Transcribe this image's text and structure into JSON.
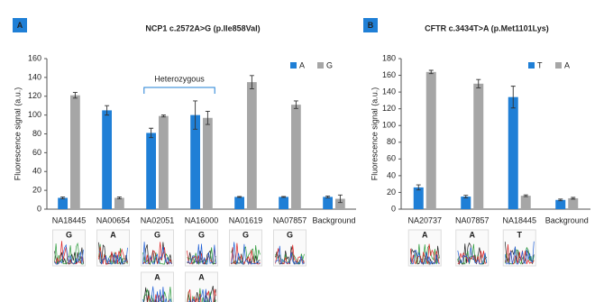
{
  "chart_data": [
    {
      "type": "bar",
      "panel": "A",
      "title": "NCP1 c.2572A>G (p.Ile858Val)",
      "y_label": "Fluorescence signal (a.u.)",
      "categories": [
        "NA18445",
        "NA00654",
        "NA02051",
        "NA16000",
        "NA01619",
        "NA07857",
        "Background"
      ],
      "series": [
        {
          "name": "A",
          "color": "#1f7fd6",
          "values": [
            12,
            105,
            81,
            100,
            13,
            13,
            13
          ],
          "errors": [
            1,
            5,
            5,
            15,
            0.5,
            0.5,
            1
          ]
        },
        {
          "name": "G",
          "color": "#a6a6a6",
          "values": [
            121,
            12,
            99,
            97,
            135,
            111,
            11
          ],
          "errors": [
            3,
            1,
            1,
            7,
            7,
            4,
            4
          ]
        }
      ],
      "ylim": [
        0,
        160
      ],
      "yticks": [
        0,
        20,
        40,
        60,
        80,
        100,
        120,
        140,
        160
      ],
      "annotation": "Heterozygous",
      "chromatograms": [
        [
          "G"
        ],
        [
          "A"
        ],
        [
          "G",
          "A"
        ],
        [
          "G",
          "A"
        ],
        [
          "G"
        ],
        [
          "G"
        ],
        []
      ]
    },
    {
      "type": "bar",
      "panel": "B",
      "title": "CFTR c.3434T>A (p.Met1101Lys)",
      "y_label": "Fluorescence signal (a.u.)",
      "categories": [
        "NA20737",
        "NA07857",
        "NA18445",
        "Background"
      ],
      "series": [
        {
          "name": "T",
          "color": "#1f7fd6",
          "values": [
            26,
            15,
            134,
            11
          ],
          "errors": [
            3,
            1.5,
            13,
            1
          ]
        },
        {
          "name": "A",
          "color": "#a6a6a6",
          "values": [
            164,
            150,
            16,
            13
          ],
          "errors": [
            2,
            5,
            1,
            1
          ]
        }
      ],
      "ylim": [
        0,
        180
      ],
      "yticks": [
        0,
        20,
        40,
        60,
        80,
        100,
        120,
        140,
        160,
        180
      ],
      "chromatograms": [
        [
          "A"
        ],
        [
          "A"
        ],
        [
          "T"
        ],
        []
      ]
    }
  ]
}
